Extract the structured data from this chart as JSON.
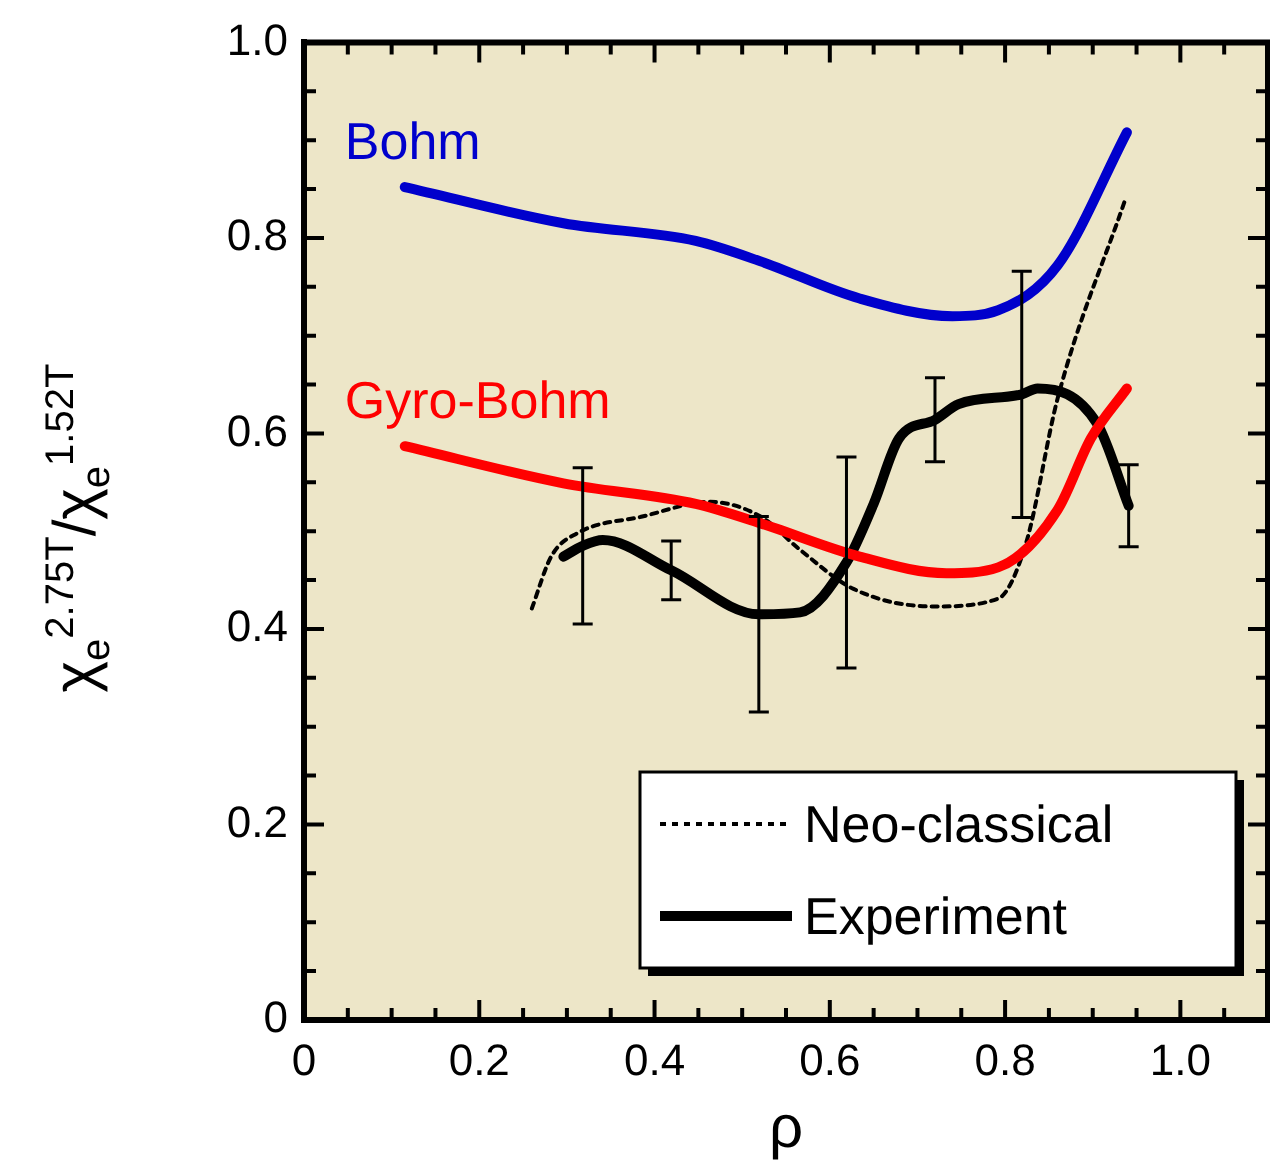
{
  "chart_data": {
    "type": "line",
    "xlabel": "ρ",
    "ylabel": "χ$_{e}$$^{2.75T}$/χ$_{e}$$^{1.52T}$",
    "xlim": [
      0,
      1.1
    ],
    "ylim": [
      0,
      1
    ],
    "xticks": [
      0,
      {
        "value": 0.05,
        "label": null
      },
      0.2,
      {
        "value": 0.1,
        "label": null
      },
      {
        "value": 0.15,
        "label": null
      },
      {
        "value": 0.25,
        "label": null
      },
      {
        "value": 0.3,
        "label": null
      },
      {
        "value": 0.35,
        "label": null
      },
      0.4,
      {
        "value": 0.45,
        "label": null
      },
      {
        "value": 0.5,
        "label": null
      },
      {
        "value": 0.55,
        "label": null
      },
      0.6,
      {
        "value": 0.65,
        "label": null
      },
      {
        "value": 0.7,
        "label": null
      },
      {
        "value": 0.75,
        "label": null
      },
      0.8,
      {
        "value": 0.85,
        "label": null
      },
      {
        "value": 0.9,
        "label": null
      },
      {
        "value": 0.95,
        "label": null
      },
      {
        "value": 1,
        "label": "1.0"
      },
      {
        "value": 1.05,
        "label": null
      }
    ],
    "yticks": [
      0,
      {
        "value": 0.05,
        "label": null
      },
      {
        "value": 0.1,
        "label": null
      },
      {
        "value": 0.15,
        "label": null
      },
      0.2,
      {
        "value": 0.25,
        "label": null
      },
      {
        "value": 0.3,
        "label": null
      },
      {
        "value": 0.35,
        "label": null
      },
      0.4,
      {
        "value": 0.45,
        "label": null
      },
      {
        "value": 0.5,
        "label": null
      },
      {
        "value": 0.55,
        "label": null
      },
      0.6,
      {
        "value": 0.65,
        "label": null
      },
      {
        "value": 0.7,
        "label": null
      },
      {
        "value": 0.75,
        "label": null
      },
      0.8,
      {
        "value": 0.85,
        "label": null
      },
      {
        "value": 0.9,
        "label": null
      },
      {
        "value": 0.95,
        "label": null
      },
      {
        "value": 1,
        "label": "1.0"
      }
    ],
    "grid": false,
    "legend": "bottom right",
    "marker": "none",
    "series": [
      {
        "name": "Bohm",
        "color": "#0000cc",
        "x": [
          0.115,
          0.296,
          0.447,
          0.521,
          0.634,
          0.74,
          0.792,
          0.86,
          0.939
        ],
        "values": [
          0.852,
          0.815,
          0.797,
          0.776,
          0.738,
          0.72,
          0.726,
          0.772,
          0.908
        ]
      },
      {
        "name": "Gyro-Bohm",
        "color": "#ff0000",
        "x": [
          0.115,
          0.296,
          0.447,
          0.521,
          0.634,
          0.733,
          0.792,
          0.86,
          0.898,
          0.939
        ],
        "values": [
          0.587,
          0.549,
          0.528,
          0.508,
          0.474,
          0.457,
          0.463,
          0.522,
          0.595,
          0.646
        ]
      },
      {
        "name": "Neo-classical",
        "color": "#000000",
        "line_style": "dotted",
        "x": [
          0.26,
          0.282,
          0.312,
          0.386,
          0.463,
          0.521,
          0.566,
          0.627,
          0.718,
          0.792,
          0.824,
          0.86,
          0.937
        ],
        "values": [
          0.421,
          0.474,
          0.498,
          0.515,
          0.53,
          0.515,
          0.481,
          0.441,
          0.423,
          0.431,
          0.488,
          0.636,
          0.839
        ]
      },
      {
        "name": "Experiment",
        "color": "#000000",
        "x": [
          0.296,
          0.318,
          0.341,
          0.419,
          0.519,
          0.566,
          0.619,
          0.65,
          0.679,
          0.72,
          0.747,
          0.819,
          0.837,
          0.905,
          0.941
        ],
        "values": [
          0.474,
          0.485,
          0.491,
          0.46,
          0.415,
          0.417,
          0.468,
          0.528,
          0.595,
          0.614,
          0.63,
          0.64,
          0.646,
          0.61,
          0.526
        ],
        "errors": [
          null,
          0.08,
          null,
          0.03,
          0.1,
          null,
          0.108,
          null,
          null,
          0.043,
          null,
          0.126,
          null,
          null,
          0.042
        ]
      }
    ]
  }
}
